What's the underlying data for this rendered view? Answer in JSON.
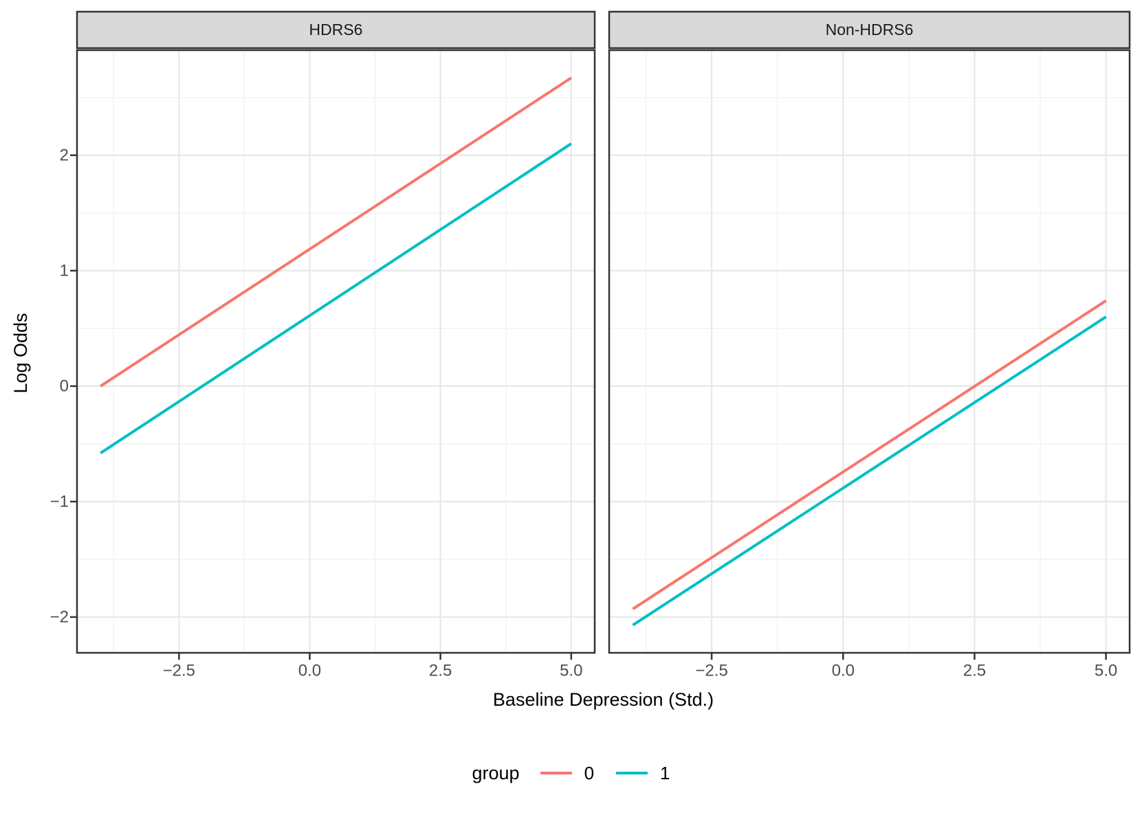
{
  "chart_data": {
    "type": "line",
    "title": "",
    "xlabel": "Baseline Depression (Std.)",
    "ylabel": "Log Odds",
    "xlim": [
      -4.45,
      5.45
    ],
    "ylim": [
      -2.31,
      2.91
    ],
    "grid": true,
    "x_ticks": [
      {
        "value": -2.5,
        "label": "−2.5"
      },
      {
        "value": 0.0,
        "label": "0.0"
      },
      {
        "value": 2.5,
        "label": "2.5"
      },
      {
        "value": 5.0,
        "label": "5.0"
      }
    ],
    "y_ticks": [
      {
        "value": 2,
        "label": "2"
      },
      {
        "value": 1,
        "label": "1"
      },
      {
        "value": 0,
        "label": "0"
      },
      {
        "value": -1,
        "label": "−1"
      },
      {
        "value": -2,
        "label": "−2"
      }
    ],
    "x_minor": [
      -3.75,
      -1.25,
      1.25,
      3.75
    ],
    "y_minor": [
      -1.5,
      -0.5,
      0.5,
      1.5,
      2.5
    ],
    "facets": [
      {
        "label": "HDRS6",
        "series": [
          {
            "name": "0",
            "x": [
              -4,
              5
            ],
            "y": [
              0.0,
              2.67
            ]
          },
          {
            "name": "1",
            "x": [
              -4,
              5
            ],
            "y": [
              -0.58,
              2.1
            ]
          }
        ]
      },
      {
        "label": "Non-HDRS6",
        "series": [
          {
            "name": "0",
            "x": [
              -4,
              5
            ],
            "y": [
              -1.93,
              0.74
            ]
          },
          {
            "name": "1",
            "x": [
              -4,
              5
            ],
            "y": [
              -2.07,
              0.6
            ]
          }
        ]
      }
    ],
    "legend": {
      "title": "group",
      "position": "bottom",
      "entries": [
        {
          "label": "0",
          "color": "#F8766D"
        },
        {
          "label": "1",
          "color": "#00BFC4"
        }
      ]
    },
    "colors": {
      "panel_background": "#FFFFFF",
      "strip_fill": "#D9D9D9",
      "panel_border": "#333333",
      "grid_major": "#E8E8E8",
      "grid_minor": "#F3F3F3",
      "axis_text": "#4D4D4D"
    }
  }
}
